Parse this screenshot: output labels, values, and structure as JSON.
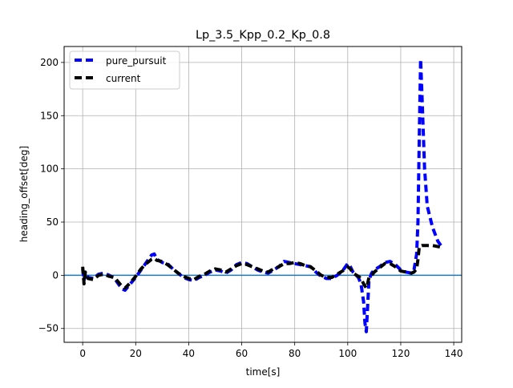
{
  "chart_data": {
    "type": "line",
    "title": "Lp_3.5_Kpp_0.2_Kp_0.8",
    "xlabel": "time[s]",
    "ylabel": "heading_offset[deg]",
    "xlim": [
      -7,
      143
    ],
    "ylim": [
      -63,
      215
    ],
    "xticks": [
      0,
      20,
      40,
      60,
      80,
      100,
      120,
      140
    ],
    "yticks": [
      -50,
      0,
      50,
      100,
      150,
      200
    ],
    "ytick_labels": [
      "−50",
      "0",
      "50",
      "100",
      "150",
      "200"
    ],
    "grid": true,
    "legend_position": "top-left",
    "reference_line": {
      "y": 0,
      "color": "#1f77b4"
    },
    "series": [
      {
        "name": "pure_pursuit",
        "color": "#0000ff",
        "style": "dashed",
        "x": [
          0,
          0.5,
          1,
          2,
          4,
          6,
          8,
          10,
          12,
          14,
          15,
          16,
          18,
          20,
          22,
          24,
          26,
          27,
          28,
          30,
          32,
          34,
          36,
          38,
          40,
          42,
          44,
          46,
          48,
          50,
          52,
          54,
          56,
          58,
          60,
          62,
          64,
          66,
          68,
          70,
          72,
          74,
          76,
          78,
          80,
          82,
          84,
          86,
          88,
          90,
          92,
          94,
          96,
          98,
          100,
          101,
          102,
          104,
          105,
          106,
          106.5,
          107,
          107.5,
          108,
          109,
          110,
          112,
          114,
          116,
          118,
          120,
          122,
          124,
          125,
          126,
          126.5,
          127,
          127.5,
          128,
          129,
          130,
          132,
          134,
          136
        ],
        "y": [
          6,
          -5,
          2,
          -2,
          -3,
          1,
          2,
          0,
          -3,
          -10,
          -13,
          -14,
          -8,
          -2,
          5,
          12,
          19,
          20,
          15,
          12,
          11,
          6,
          2,
          -2,
          -4,
          -5,
          -2,
          0,
          3,
          5,
          4,
          2,
          5,
          10,
          12,
          11,
          8,
          5,
          3,
          2,
          5,
          8,
          13,
          12,
          11,
          10,
          9,
          8,
          3,
          -1,
          -3,
          -3,
          0,
          4,
          11,
          8,
          3,
          -2,
          -8,
          -25,
          -45,
          -53,
          -30,
          -5,
          2,
          5,
          8,
          12,
          13,
          10,
          5,
          3,
          2,
          5,
          20,
          50,
          130,
          203,
          170,
          100,
          65,
          45,
          32,
          25
        ]
      },
      {
        "name": "current",
        "color": "#000000",
        "style": "dashed",
        "x": [
          0,
          0.5,
          1,
          2,
          4,
          6,
          8,
          10,
          12,
          14,
          15,
          16,
          18,
          20,
          22,
          24,
          26,
          27,
          28,
          30,
          32,
          34,
          36,
          38,
          40,
          42,
          44,
          46,
          48,
          50,
          52,
          54,
          56,
          58,
          60,
          62,
          64,
          66,
          68,
          70,
          72,
          74,
          76,
          78,
          80,
          82,
          84,
          86,
          88,
          90,
          92,
          94,
          96,
          98,
          100,
          101,
          102,
          104,
          105,
          106,
          106.5,
          107,
          107.5,
          108,
          109,
          110,
          112,
          114,
          116,
          118,
          120,
          122,
          124,
          125,
          126,
          126.5,
          127,
          128,
          130,
          132,
          134,
          136
        ],
        "y": [
          8,
          -8,
          3,
          -3,
          -4,
          0,
          1,
          -1,
          -2,
          -8,
          -11,
          -12,
          -7,
          -1,
          6,
          11,
          15,
          16,
          14,
          13,
          10,
          6,
          2,
          -1,
          -3,
          -4,
          -1,
          1,
          4,
          6,
          5,
          3,
          6,
          9,
          11,
          10,
          8,
          6,
          4,
          3,
          6,
          8,
          11,
          11,
          12,
          11,
          9,
          8,
          4,
          0,
          -2,
          -2,
          1,
          4,
          8,
          6,
          2,
          -1,
          -3,
          -8,
          -10,
          -12,
          -8,
          -2,
          0,
          3,
          7,
          11,
          11,
          8,
          4,
          3,
          2,
          3,
          6,
          15,
          27,
          28,
          28,
          28,
          27,
          26
        ]
      }
    ]
  }
}
